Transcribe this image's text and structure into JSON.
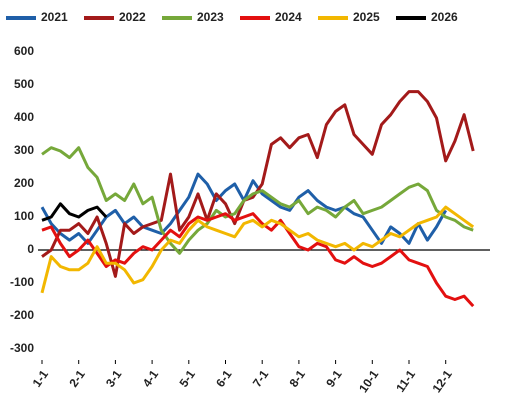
{
  "chart_data": {
    "type": "line",
    "categories": [
      "1-1",
      null,
      null,
      null,
      "2-1",
      null,
      null,
      null,
      "3-1",
      null,
      null,
      null,
      "4-1",
      null,
      null,
      null,
      "5-1",
      null,
      null,
      null,
      "6-1",
      null,
      null,
      null,
      "7-1",
      null,
      null,
      null,
      "8-1",
      null,
      null,
      null,
      "9-1",
      null,
      null,
      null,
      "10-1",
      null,
      null,
      null,
      "11-1",
      null,
      null,
      null,
      "12-1",
      null,
      null,
      null
    ],
    "ylim": [
      -300,
      600
    ],
    "yticks": [
      -300,
      -200,
      -100,
      0,
      100,
      200,
      300,
      400,
      500,
      600
    ],
    "legend": "top",
    "series": [
      {
        "name": "2021",
        "color": "#1f5fa8",
        "values": [
          130,
          80,
          50,
          30,
          50,
          20,
          60,
          100,
          120,
          80,
          100,
          70,
          60,
          50,
          80,
          120,
          160,
          230,
          200,
          150,
          180,
          200,
          150,
          210,
          170,
          150,
          130,
          120,
          160,
          180,
          150,
          130,
          120,
          130,
          110,
          100,
          60,
          20,
          70,
          50,
          20,
          80,
          30,
          70,
          120,
          null,
          null,
          null
        ]
      },
      {
        "name": "2022",
        "color": "#a31a1a",
        "values": [
          -20,
          0,
          60,
          60,
          80,
          50,
          100,
          20,
          -80,
          80,
          50,
          70,
          80,
          90,
          230,
          60,
          100,
          170,
          90,
          170,
          140,
          80,
          150,
          160,
          200,
          320,
          340,
          310,
          340,
          350,
          280,
          380,
          420,
          440,
          350,
          320,
          290,
          380,
          410,
          450,
          480,
          480,
          450,
          400,
          270,
          330,
          410,
          300
        ]
      },
      {
        "name": "2023",
        "color": "#76a83a",
        "values": [
          290,
          310,
          300,
          280,
          310,
          250,
          220,
          150,
          170,
          150,
          200,
          140,
          160,
          60,
          20,
          -10,
          30,
          60,
          80,
          120,
          100,
          110,
          150,
          170,
          180,
          160,
          140,
          130,
          150,
          110,
          130,
          120,
          100,
          130,
          150,
          110,
          120,
          130,
          150,
          170,
          190,
          200,
          180,
          120,
          100,
          90,
          70,
          60
        ]
      },
      {
        "name": "2024",
        "color": "#e31010",
        "values": [
          60,
          70,
          20,
          -20,
          0,
          30,
          -10,
          -50,
          -30,
          -40,
          -10,
          10,
          0,
          30,
          60,
          40,
          80,
          100,
          90,
          100,
          110,
          90,
          100,
          110,
          80,
          60,
          90,
          50,
          10,
          0,
          20,
          10,
          -30,
          -40,
          -20,
          -40,
          -50,
          -40,
          -20,
          0,
          -30,
          -40,
          -50,
          -100,
          -140,
          -150,
          -140,
          -170
        ]
      },
      {
        "name": "2025",
        "color": "#f2b700",
        "values": [
          -130,
          -20,
          -50,
          -60,
          -60,
          -40,
          10,
          -40,
          -40,
          -60,
          -100,
          -90,
          -50,
          0,
          30,
          20,
          60,
          90,
          70,
          60,
          50,
          40,
          80,
          90,
          70,
          90,
          80,
          60,
          40,
          50,
          30,
          20,
          10,
          20,
          0,
          20,
          10,
          30,
          50,
          40,
          60,
          80,
          90,
          100,
          130,
          110,
          90,
          70
        ]
      },
      {
        "name": "2026",
        "color": "#000000",
        "values": [
          90,
          100,
          140,
          110,
          100,
          120,
          130,
          100,
          null,
          null,
          null,
          null,
          null,
          null,
          null,
          null,
          null,
          null,
          null,
          null,
          null,
          null,
          null,
          null,
          null,
          null,
          null,
          null,
          null,
          null,
          null,
          null,
          null,
          null,
          null,
          null,
          null,
          null,
          null,
          null,
          null,
          null,
          null,
          null,
          null,
          null,
          null,
          null
        ]
      }
    ]
  }
}
